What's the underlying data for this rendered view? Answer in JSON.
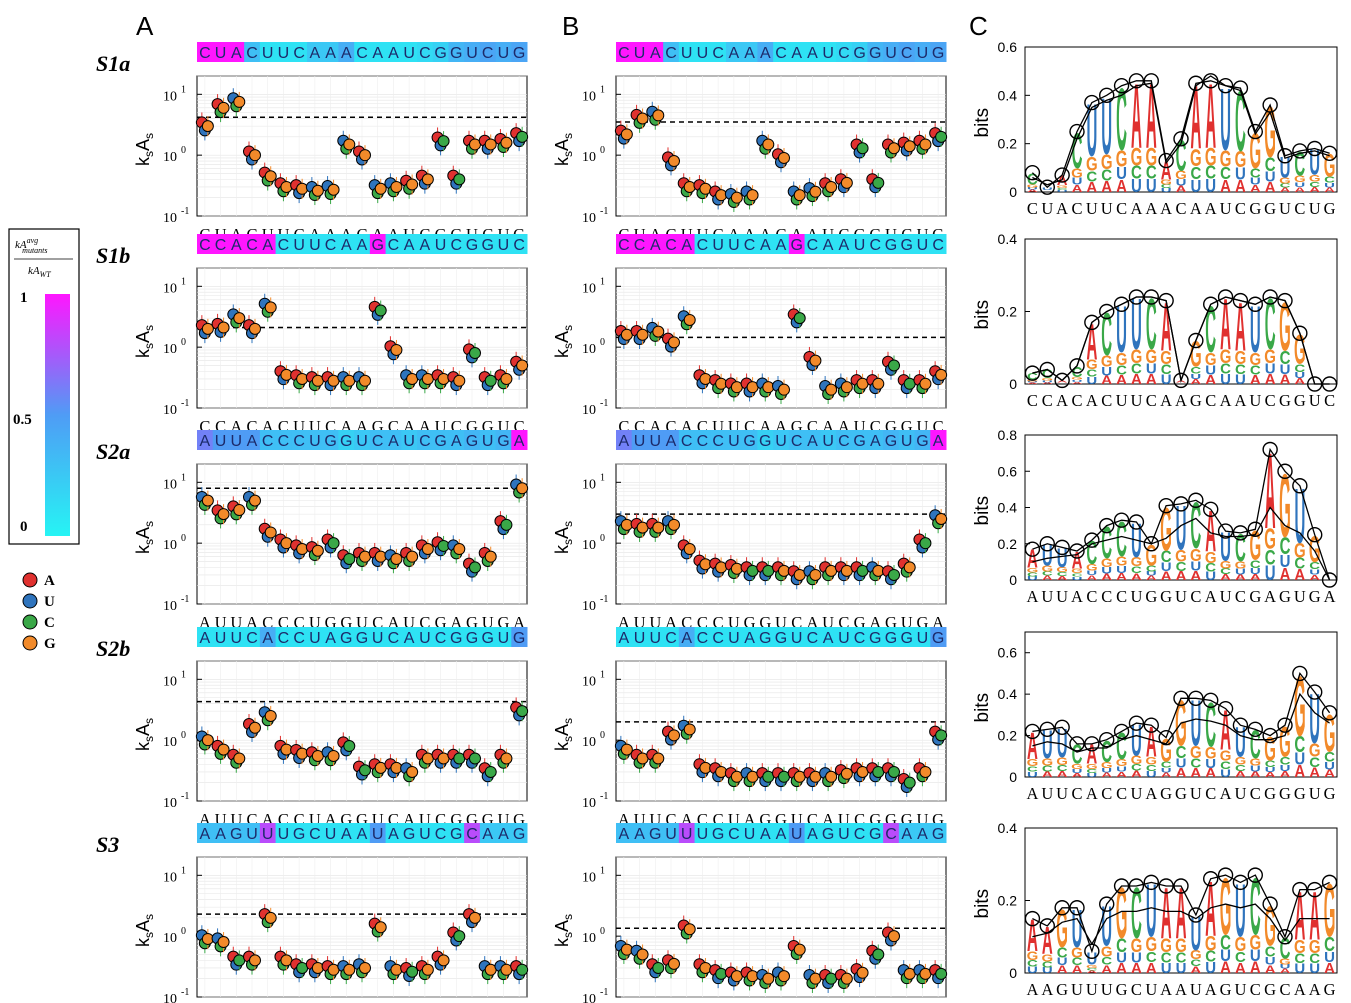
{
  "figure": {
    "panel_letters": [
      "A",
      "B",
      "C"
    ],
    "ylabel": "k",
    "ylabel_parts": {
      "k": "k",
      "s1": "s",
      "a": "A",
      "s2": "s"
    },
    "c_ylabel": "bits",
    "ytick_labels": {
      "t1": "10",
      "t1e": "1",
      "t0": "10",
      "t0e": "0",
      "tm1": "10",
      "tm1e": "-1"
    }
  },
  "colorbar": {
    "fraction": {
      "numerator": "kA",
      "num_sup": "avg",
      "num_sub": "mutants",
      "denominator": "kA",
      "den_sub": "WT"
    },
    "ticks": [
      "1",
      "0.5",
      "0"
    ],
    "low_color": "#26f4f4",
    "high_color": "#ff16ff"
  },
  "legend": {
    "items": [
      {
        "label": "A",
        "color": "#e0312f"
      },
      {
        "label": "U",
        "color": "#2f74bd"
      },
      {
        "label": "C",
        "color": "#3aa848"
      },
      {
        "label": "G",
        "color": "#f28a2a"
      }
    ]
  },
  "logo_colors": {
    "A": "#e0312f",
    "U": "#2f74bd",
    "C": "#3aa848",
    "G": "#f28a2a"
  },
  "chart_data": [
    {
      "id": "S1a",
      "type": "scatter",
      "label": "S1a",
      "sequence": "CUACUUCAAACAAUCGGUCUG",
      "yscale": "log",
      "ylim": [
        0.1,
        20
      ],
      "banner": [
        1,
        1,
        1,
        0.3,
        0.1,
        0.1,
        0.1,
        0.25,
        0.25,
        0.4,
        0.1,
        0.1,
        0.1,
        0.1,
        0.15,
        0.2,
        0.35,
        0.4,
        0.45,
        0.4,
        0.45
      ],
      "A": {
        "wt_line": 4.2,
        "values": [
          3.0,
          6.0,
          7.5,
          1.0,
          0.45,
          0.3,
          0.28,
          0.26,
          0.27,
          1.5,
          1.0,
          0.28,
          0.3,
          0.33,
          0.4,
          1.7,
          0.4,
          1.5,
          1.5,
          1.6,
          2.0
        ]
      },
      "B": {
        "wt_line": 3.5,
        "values": [
          2.2,
          4.0,
          4.5,
          0.8,
          0.3,
          0.28,
          0.22,
          0.2,
          0.22,
          1.5,
          0.9,
          0.22,
          0.25,
          0.3,
          0.35,
          1.3,
          0.35,
          1.3,
          1.4,
          1.5,
          2.0
        ]
      },
      "C": {
        "ylim": [
          0,
          0.6
        ],
        "yticks": [
          "0",
          "0.2",
          "0.4",
          "0.6"
        ],
        "info": [
          0.08,
          0.02,
          0.07,
          0.25,
          0.37,
          0.4,
          0.44,
          0.46,
          0.46,
          0.13,
          0.22,
          0.45,
          0.46,
          0.44,
          0.43,
          0.25,
          0.36,
          0.15,
          0.17,
          0.18,
          0.16
        ],
        "info2": [
          0.06,
          0.03,
          0.05,
          0.22,
          0.35,
          0.38,
          0.4,
          0.44,
          0.45,
          0.12,
          0.2,
          0.44,
          0.48,
          0.44,
          0.42,
          0.24,
          0.33,
          0.14,
          0.16,
          0.17,
          0.15
        ]
      }
    },
    {
      "id": "S1b",
      "type": "scatter",
      "label": "S1b",
      "sequence": "CCACACUUCAAGCAAUCGGUC",
      "yscale": "log",
      "ylim": [
        0.1,
        20
      ],
      "banner": [
        1,
        1,
        1,
        1,
        1,
        0.1,
        0.1,
        0.1,
        0.1,
        0.1,
        0.1,
        1,
        0.1,
        0.1,
        0.1,
        0.1,
        0.1,
        0.1,
        0.1,
        0.1,
        0.1
      ],
      "A": {
        "wt_line": 2.1,
        "values": [
          2.0,
          2.1,
          3.0,
          2.0,
          4.5,
          0.35,
          0.3,
          0.28,
          0.28,
          0.28,
          0.28,
          4.0,
          0.9,
          0.3,
          0.3,
          0.3,
          0.28,
          0.8,
          0.28,
          0.3,
          0.5
        ]
      },
      "B": {
        "wt_line": 1.45,
        "values": [
          1.6,
          1.6,
          1.8,
          1.2,
          2.8,
          0.3,
          0.25,
          0.22,
          0.22,
          0.22,
          0.2,
          3.0,
          0.6,
          0.2,
          0.22,
          0.25,
          0.25,
          0.5,
          0.25,
          0.25,
          0.35
        ]
      },
      "C": {
        "ylim": [
          0,
          0.4
        ],
        "yticks": [
          "0",
          "0.2",
          "0.4"
        ],
        "info": [
          0.03,
          0.04,
          0.01,
          0.05,
          0.17,
          0.2,
          0.22,
          0.24,
          0.24,
          0.23,
          0.01,
          0.12,
          0.22,
          0.24,
          0.23,
          0.22,
          0.24,
          0.23,
          0.14,
          0.0,
          0.0
        ],
        "info2": [
          0.03,
          0.04,
          0.01,
          0.05,
          0.17,
          0.2,
          0.22,
          0.24,
          0.24,
          0.23,
          0.01,
          0.12,
          0.22,
          0.24,
          0.23,
          0.22,
          0.24,
          0.23,
          0.14,
          0.0,
          0.0
        ]
      }
    },
    {
      "id": "S2a",
      "type": "scatter",
      "label": "S2a",
      "sequence": "AUUACCCUGGUCAUCGAGUGA",
      "yscale": "log",
      "ylim": [
        0.1,
        20
      ],
      "banner": [
        0.6,
        0.5,
        0.5,
        0.5,
        0.3,
        0.3,
        0.3,
        0.3,
        0.3,
        0.2,
        0.25,
        0.3,
        0.3,
        0.25,
        0.3,
        0.3,
        0.3,
        0.35,
        0.3,
        0.35,
        1
      ],
      "A": {
        "wt_line": 8.0,
        "values": [
          5.0,
          3.0,
          3.5,
          5.0,
          1.5,
          1.0,
          0.8,
          0.75,
          1.0,
          0.55,
          0.6,
          0.6,
          0.55,
          0.6,
          0.8,
          0.9,
          0.8,
          0.4,
          0.6,
          2.0,
          8.0
        ]
      },
      "B": {
        "wt_line": 3.0,
        "values": [
          2.0,
          1.8,
          1.8,
          2.0,
          0.8,
          0.45,
          0.4,
          0.38,
          0.35,
          0.35,
          0.35,
          0.3,
          0.3,
          0.35,
          0.35,
          0.35,
          0.35,
          0.3,
          0.4,
          1.0,
          2.5
        ]
      },
      "C": {
        "ylim": [
          0,
          0.8
        ],
        "yticks": [
          "0",
          "0.2",
          "0.4",
          "0.6",
          "0.8"
        ],
        "info": [
          0.17,
          0.2,
          0.18,
          0.16,
          0.22,
          0.3,
          0.33,
          0.32,
          0.2,
          0.41,
          0.42,
          0.44,
          0.39,
          0.27,
          0.26,
          0.28,
          0.72,
          0.6,
          0.52,
          0.25,
          0.0
        ],
        "info2": [
          0.1,
          0.12,
          0.13,
          0.14,
          0.2,
          0.22,
          0.24,
          0.22,
          0.2,
          0.23,
          0.3,
          0.34,
          0.26,
          0.24,
          0.24,
          0.25,
          0.4,
          0.3,
          0.26,
          0.16,
          0.0
        ]
      }
    },
    {
      "id": "S2b",
      "type": "scatter",
      "label": "S2b",
      "sequence": "AUUCACCUAGGUCAUCGGGUG",
      "yscale": "log",
      "ylim": [
        0.1,
        20
      ],
      "banner": [
        0.1,
        0.1,
        0.1,
        0.1,
        0.4,
        0.1,
        0.1,
        0.1,
        0.1,
        0.1,
        0.1,
        0.1,
        0.1,
        0.1,
        0.1,
        0.1,
        0.1,
        0.1,
        0.1,
        0.1,
        0.5
      ],
      "A": {
        "wt_line": 4.3,
        "values": [
          1.0,
          0.7,
          0.5,
          1.6,
          2.5,
          0.7,
          0.6,
          0.55,
          0.55,
          0.8,
          0.32,
          0.35,
          0.35,
          0.3,
          0.5,
          0.5,
          0.5,
          0.5,
          0.3,
          0.5,
          3.0
        ]
      },
      "B": {
        "wt_line": 2.0,
        "values": [
          0.7,
          0.5,
          0.5,
          1.2,
          1.5,
          0.35,
          0.3,
          0.25,
          0.25,
          0.25,
          0.25,
          0.25,
          0.25,
          0.25,
          0.28,
          0.3,
          0.3,
          0.3,
          0.2,
          0.3,
          1.2
        ]
      },
      "C": {
        "ylim": [
          0,
          0.7
        ],
        "yticks": [
          "0",
          "0.2",
          "0.4",
          "0.6"
        ],
        "info": [
          0.22,
          0.23,
          0.24,
          0.16,
          0.16,
          0.18,
          0.22,
          0.26,
          0.25,
          0.19,
          0.38,
          0.38,
          0.37,
          0.33,
          0.25,
          0.23,
          0.2,
          0.25,
          0.5,
          0.41,
          0.31
        ],
        "info2": [
          0.15,
          0.17,
          0.16,
          0.12,
          0.14,
          0.14,
          0.18,
          0.2,
          0.18,
          0.16,
          0.26,
          0.28,
          0.27,
          0.25,
          0.2,
          0.18,
          0.18,
          0.2,
          0.4,
          0.31,
          0.26
        ]
      }
    },
    {
      "id": "S3",
      "type": "scatter",
      "label": "S3",
      "sequence": "AAGUUUGCUAAUAGUCGCAAG",
      "yscale": "log",
      "ylim": [
        0.1,
        20
      ],
      "banner": [
        0.3,
        0.3,
        0.3,
        0.3,
        0.8,
        0.1,
        0.1,
        0.1,
        0.1,
        0.1,
        0.1,
        0.5,
        0.1,
        0.1,
        0.1,
        0.1,
        0.1,
        0.8,
        0.25,
        0.25,
        0.25
      ],
      "A": {
        "wt_line": 2.3,
        "values": [
          0.9,
          0.8,
          0.4,
          0.4,
          2.0,
          0.4,
          0.3,
          0.3,
          0.28,
          0.28,
          0.3,
          1.4,
          0.28,
          0.26,
          0.28,
          0.4,
          1.0,
          2.0,
          0.28,
          0.28,
          0.28
        ]
      },
      "B": {
        "wt_line": 1.35,
        "values": [
          0.6,
          0.5,
          0.3,
          0.35,
          1.3,
          0.3,
          0.24,
          0.22,
          0.22,
          0.2,
          0.22,
          0.6,
          0.2,
          0.2,
          0.2,
          0.25,
          0.5,
          1.0,
          0.24,
          0.24,
          0.24
        ]
      },
      "C": {
        "ylim": [
          0,
          0.4
        ],
        "yticks": [
          "0",
          "0.2",
          "0.4"
        ],
        "info": [
          0.15,
          0.13,
          0.18,
          0.18,
          0.06,
          0.19,
          0.24,
          0.24,
          0.25,
          0.24,
          0.24,
          0.16,
          0.26,
          0.27,
          0.25,
          0.27,
          0.19,
          0.1,
          0.23,
          0.23,
          0.25
        ],
        "info2": [
          0.1,
          0.11,
          0.14,
          0.15,
          0.08,
          0.15,
          0.17,
          0.17,
          0.18,
          0.17,
          0.17,
          0.15,
          0.18,
          0.19,
          0.18,
          0.19,
          0.15,
          0.09,
          0.15,
          0.15,
          0.15
        ]
      }
    }
  ]
}
